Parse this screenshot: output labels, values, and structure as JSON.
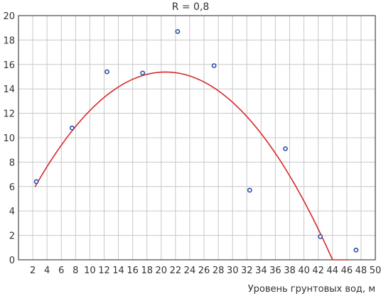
{
  "chart_data": {
    "type": "scatter",
    "title": "R = 0,8",
    "xlabel": "Уровень грунтовых вод, м",
    "ylabel": "",
    "x_ticks": [
      "2",
      "4",
      "6",
      "8",
      "10",
      "12",
      "14",
      "16",
      "18",
      "20",
      "22",
      "24",
      "26",
      "28",
      "30",
      "32",
      "34",
      "36",
      "38",
      "40",
      "42",
      "44",
      "46",
      "48",
      "50"
    ],
    "y_ticks": [
      "0",
      "2",
      "4",
      "6",
      "8",
      "10",
      "12",
      "14",
      "16",
      "18",
      "20"
    ],
    "ylim": [
      0,
      20
    ],
    "grid": true,
    "legend": "none",
    "points": [
      {
        "x": 2.5,
        "y": 6.4
      },
      {
        "x": 7.5,
        "y": 10.8
      },
      {
        "x": 12.4,
        "y": 15.4
      },
      {
        "x": 17.4,
        "y": 15.3
      },
      {
        "x": 22.3,
        "y": 18.7
      },
      {
        "x": 27.4,
        "y": 15.9
      },
      {
        "x": 32.4,
        "y": 5.7
      },
      {
        "x": 37.4,
        "y": 9.1
      },
      {
        "x": 42.3,
        "y": 1.9
      },
      {
        "x": 47.3,
        "y": 0.8
      }
    ],
    "trend": {
      "type": "quadratic",
      "coefficients": {
        "a": -0.0281,
        "b": 1.158,
        "c": 3.45
      },
      "x_range": [
        2.3,
        46.2
      ]
    },
    "colors": {
      "points": "#2b4fa8",
      "trend": "#d62a2a",
      "grid": "#c8c8c8",
      "axis": "#222222"
    }
  }
}
